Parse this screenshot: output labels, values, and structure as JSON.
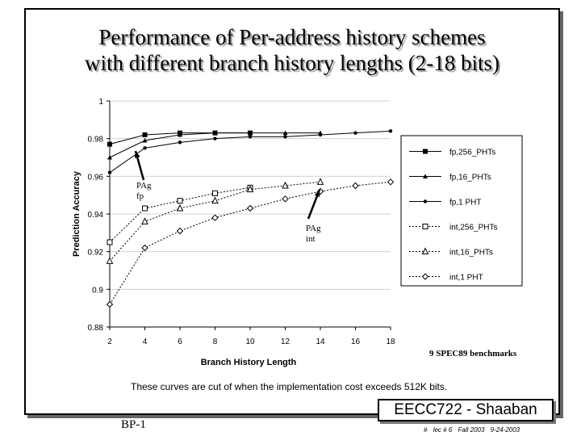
{
  "slide": {
    "title_line1": "Performance of Per-address history schemes",
    "title_line2": "with different branch history lengths (2-18 bits)",
    "caption": "These curves are cut of when the implementation cost exceeds 512K bits.",
    "benchmark_note": "9 SPEC89 benchmarks",
    "footer_left": "BP-1",
    "brand": "EECC722 - Shaaban",
    "meta": {
      "hash": "#",
      "lec": "lec # 6",
      "term": "Fall 2003",
      "date": "9-24-2003"
    }
  },
  "annotations": [
    {
      "line1": "PAg",
      "line2": "fp"
    },
    {
      "line1": "PAg",
      "line2": "int"
    }
  ],
  "chart_data": {
    "type": "line",
    "title": "",
    "xlabel": "Branch History Length",
    "ylabel": "Prediction Accuracy",
    "xlim": [
      2,
      18
    ],
    "ylim": [
      0.88,
      1
    ],
    "xticks": [
      2,
      4,
      6,
      8,
      10,
      12,
      14,
      16,
      18
    ],
    "yticks": [
      0.88,
      0.9,
      0.92,
      0.94,
      0.96,
      0.98,
      1
    ],
    "ytick_labels": [
      "0.88",
      "0.9",
      "0.92",
      "0.94",
      "0.96",
      "0.98",
      "1"
    ],
    "grid": "horizontal",
    "legend_position": "right",
    "series": [
      {
        "name": "fp,256_PHTs",
        "marker": "filled-square",
        "dash": "solid",
        "x": [
          2,
          4,
          6,
          8,
          10
        ],
        "values": [
          0.977,
          0.982,
          0.983,
          0.983,
          0.983
        ]
      },
      {
        "name": "fp,16_PHTs",
        "marker": "filled-triangle",
        "dash": "solid",
        "x": [
          2,
          4,
          6,
          8,
          10,
          12,
          14
        ],
        "values": [
          0.97,
          0.979,
          0.982,
          0.983,
          0.983,
          0.983,
          0.983
        ]
      },
      {
        "name": "fp,1 PHT",
        "marker": "filled-dot",
        "dash": "solid",
        "x": [
          2,
          4,
          6,
          8,
          10,
          12,
          14,
          16,
          18
        ],
        "values": [
          0.962,
          0.975,
          0.978,
          0.98,
          0.981,
          0.981,
          0.982,
          0.983,
          0.984
        ]
      },
      {
        "name": "int,256_PHTs",
        "marker": "open-square",
        "dash": "dashed",
        "x": [
          2,
          4,
          6,
          8,
          10
        ],
        "values": [
          0.925,
          0.943,
          0.947,
          0.951,
          0.954
        ]
      },
      {
        "name": "int,16_PHTs",
        "marker": "open-triangle",
        "dash": "dashed",
        "x": [
          2,
          4,
          6,
          8,
          10,
          12,
          14
        ],
        "values": [
          0.915,
          0.936,
          0.943,
          0.947,
          0.953,
          0.955,
          0.957
        ]
      },
      {
        "name": "int,1 PHT",
        "marker": "open-diamond",
        "dash": "dashed",
        "x": [
          2,
          4,
          6,
          8,
          10,
          12,
          14,
          16,
          18
        ],
        "values": [
          0.892,
          0.922,
          0.931,
          0.938,
          0.943,
          0.948,
          0.952,
          0.955,
          0.957
        ]
      }
    ]
  }
}
